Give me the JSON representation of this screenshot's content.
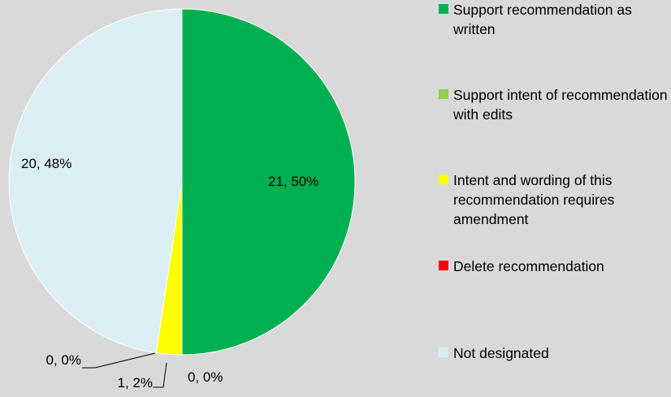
{
  "chart_data": {
    "type": "pie",
    "title": "",
    "slices": [
      {
        "name": "Support recommendation as written",
        "value": 21,
        "percent": "50%",
        "label": "21, 50%",
        "color": "#00b050"
      },
      {
        "name": "Support intent of recommendation with edits",
        "value": 0,
        "percent": "0%",
        "label": "0, 0%",
        "color": "#92d050"
      },
      {
        "name": "Intent and wording of this recommendation requires amendment",
        "value": 1,
        "percent": "2%",
        "label": "1, 2%",
        "color": "#ffff00"
      },
      {
        "name": "Delete recommendation",
        "value": 0,
        "percent": "0%",
        "label": "0, 0%",
        "color": "#ff0000"
      },
      {
        "name": "Not designated",
        "value": 20,
        "percent": "48%",
        "label": "20, 48%",
        "color": "#daeef3"
      }
    ],
    "legend": {
      "position": "right",
      "items": [
        "Support recommendation as written",
        "Support intent of recommendation with edits",
        "Intent and wording of this recommendation requires amendment",
        "Delete recommendation",
        "Not designated"
      ]
    }
  },
  "colors": {
    "background": "#d9d9d9"
  }
}
